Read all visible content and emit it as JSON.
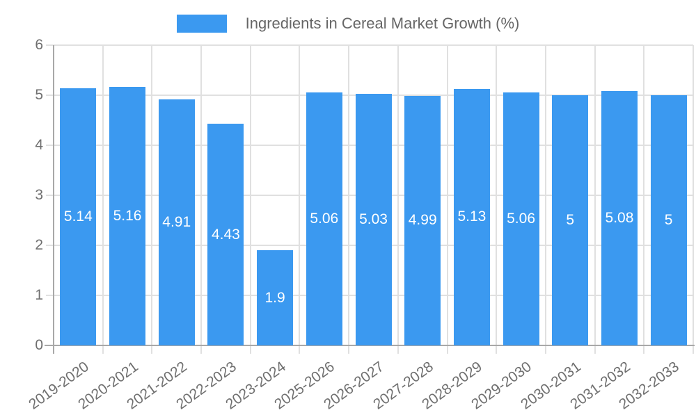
{
  "legend": {
    "label": "Ingredients in Cereal Market Growth (%)"
  },
  "chart_data": {
    "type": "bar",
    "title": "Ingredients in Cereal Market Growth (%)",
    "categories": [
      "2019-2020",
      "2020-2021",
      "2021-2022",
      "2022-2023",
      "2023-2024",
      "2025-2026",
      "2026-2027",
      "2027-2028",
      "2028-2029",
      "2029-2030",
      "2030-2031",
      "2031-2032",
      "2032-2033"
    ],
    "series": [
      {
        "name": "Ingredients in Cereal Market Growth (%)",
        "values": [
          5.14,
          5.16,
          4.91,
          4.43,
          1.9,
          5.06,
          5.03,
          4.99,
          5.13,
          5.06,
          5,
          5.08,
          5
        ],
        "value_labels": [
          "5.14",
          "5.16",
          "4.91",
          "4.43",
          "1.9",
          "5.06",
          "5.03",
          "4.99",
          "5.13",
          "5.06",
          "5",
          "5.08",
          "5"
        ]
      }
    ],
    "xlabel": "",
    "ylabel": "",
    "ylim": [
      0,
      6
    ],
    "yticks": [
      0,
      1,
      2,
      3,
      4,
      5,
      6
    ],
    "grid": true,
    "legend_position": "top",
    "value_labels_position": "center-of-bar",
    "colors": {
      "bar": "#3b99f0",
      "grid": "#e0e0e0",
      "axis": "#a8a8a8",
      "tick_label": "#6f6f6f",
      "title": "#666666",
      "value_label": "#ffffff",
      "background": "#ffffff"
    }
  }
}
